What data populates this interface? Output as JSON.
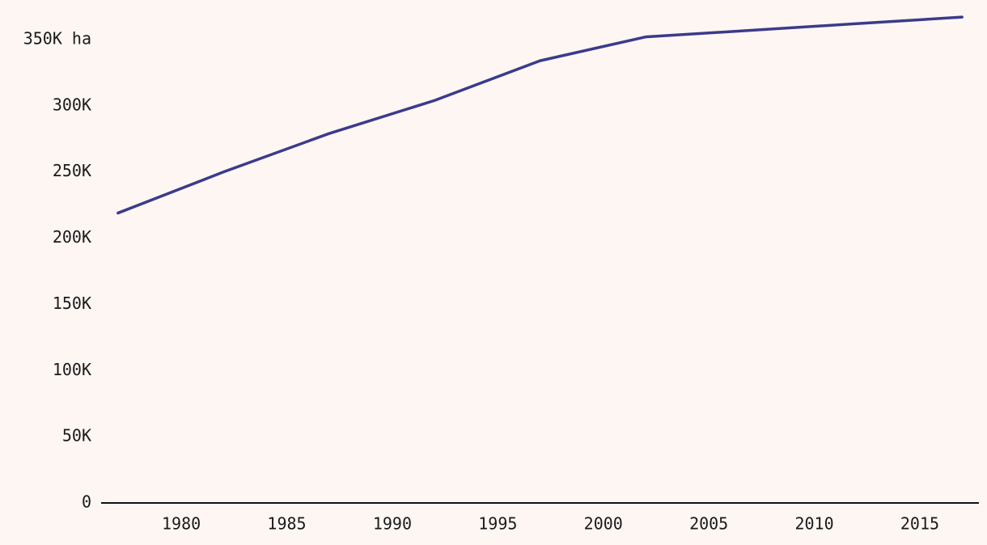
{
  "chart_data": {
    "type": "line",
    "x": [
      1977,
      1982,
      1987,
      1992,
      1997,
      2002,
      2007,
      2012,
      2017
    ],
    "values": [
      219000,
      250000,
      279000,
      304000,
      334000,
      352000,
      357000,
      362000,
      367000
    ],
    "color": "#3b3b8c",
    "xlim": [
      1976.2,
      2017.8
    ],
    "xticks": [
      1980,
      1985,
      1990,
      1995,
      2000,
      2005,
      2010,
      2015
    ],
    "ylim": [
      0,
      370000
    ],
    "yticks": [
      0,
      {
        "value": 50000,
        "label": "50K"
      },
      {
        "value": 100000,
        "label": "100K"
      },
      {
        "value": 150000,
        "label": "150K"
      },
      {
        "value": 200000,
        "label": "200K"
      },
      {
        "value": 250000,
        "label": "250K"
      },
      {
        "value": 300000,
        "label": "300K"
      },
      {
        "value": 350000,
        "label": "350K ha"
      }
    ],
    "grid": false
  }
}
